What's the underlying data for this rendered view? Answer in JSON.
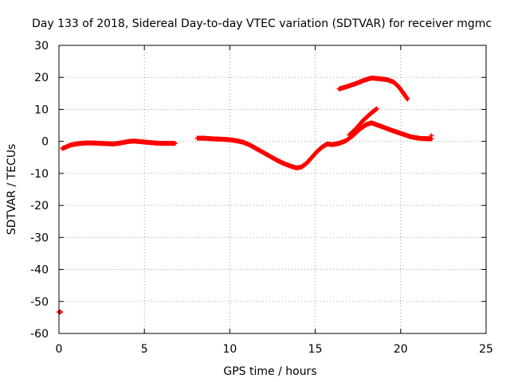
{
  "chart_data": {
    "type": "scatter",
    "title": "Day 133 of 2018, Sidereal Day-to-day VTEC variation (SDTVAR) for receiver mgmc",
    "xlabel": "GPS time / hours",
    "ylabel": "SDTVAR / TECUs",
    "xlim": [
      0,
      25
    ],
    "ylim": [
      -60,
      30
    ],
    "xticks": [
      0,
      5,
      10,
      15,
      20,
      25
    ],
    "yticks": [
      -60,
      -50,
      -40,
      -30,
      -20,
      -10,
      0,
      10,
      20,
      30
    ],
    "xtick_labels": [
      "0",
      "5",
      "10",
      "15",
      "20",
      "25"
    ],
    "ytick_labels": [
      "-60",
      "-50",
      "-40",
      "-30",
      "-20",
      "-10",
      "0",
      "10",
      "20",
      "30"
    ],
    "grid": true,
    "marker": "plus",
    "colors": {
      "series": "#ff0000",
      "axis": "#000000",
      "grid": "#a0a0a0"
    },
    "series": [
      {
        "name": "outlier",
        "points": [
          [
            0.0,
            -53.3
          ],
          [
            0.1,
            -53.3
          ]
        ]
      },
      {
        "name": "arc-1",
        "points": [
          [
            0.2,
            -2.2
          ],
          [
            0.4,
            -1.8
          ],
          [
            0.6,
            -1.3
          ],
          [
            0.8,
            -1.0
          ],
          [
            1.0,
            -0.8
          ],
          [
            1.3,
            -0.6
          ],
          [
            1.6,
            -0.5
          ],
          [
            2.0,
            -0.5
          ],
          [
            2.4,
            -0.6
          ],
          [
            2.8,
            -0.7
          ],
          [
            3.2,
            -0.8
          ],
          [
            3.5,
            -0.6
          ],
          [
            3.8,
            -0.3
          ],
          [
            4.1,
            0.0
          ],
          [
            4.4,
            0.1
          ],
          [
            4.8,
            -0.1
          ],
          [
            5.2,
            -0.3
          ],
          [
            5.6,
            -0.5
          ],
          [
            6.0,
            -0.6
          ],
          [
            6.4,
            -0.6
          ],
          [
            6.8,
            -0.6
          ]
        ]
      },
      {
        "name": "arc-2",
        "points": [
          [
            8.1,
            1.0
          ],
          [
            8.5,
            1.0
          ],
          [
            9.0,
            0.8
          ],
          [
            9.5,
            0.7
          ],
          [
            10.0,
            0.5
          ],
          [
            10.4,
            0.2
          ],
          [
            10.8,
            -0.3
          ],
          [
            11.2,
            -1.2
          ],
          [
            11.6,
            -2.4
          ],
          [
            12.0,
            -3.6
          ],
          [
            12.4,
            -4.8
          ],
          [
            12.8,
            -6.0
          ],
          [
            13.2,
            -7.0
          ],
          [
            13.6,
            -7.8
          ],
          [
            13.9,
            -8.3
          ],
          [
            14.2,
            -8.0
          ],
          [
            14.5,
            -6.8
          ],
          [
            14.8,
            -5.0
          ],
          [
            15.1,
            -3.2
          ],
          [
            15.4,
            -1.8
          ],
          [
            15.7,
            -0.8
          ],
          [
            16.0,
            -1.0
          ],
          [
            16.4,
            -0.6
          ],
          [
            16.8,
            0.2
          ],
          [
            17.2,
            1.8
          ],
          [
            17.6,
            3.8
          ],
          [
            18.0,
            5.3
          ],
          [
            18.3,
            5.8
          ],
          [
            18.8,
            4.8
          ],
          [
            19.4,
            3.6
          ],
          [
            20.0,
            2.5
          ],
          [
            20.6,
            1.4
          ],
          [
            21.2,
            0.9
          ],
          [
            21.8,
            0.8
          ]
        ]
      },
      {
        "name": "arc-3",
        "points": [
          [
            17.0,
            2.0
          ],
          [
            17.4,
            4.0
          ],
          [
            17.8,
            6.5
          ],
          [
            18.2,
            8.5
          ],
          [
            18.6,
            10.2
          ]
        ]
      },
      {
        "name": "arc-4",
        "points": [
          [
            16.4,
            16.4
          ],
          [
            16.9,
            17.2
          ],
          [
            17.4,
            18.1
          ],
          [
            17.9,
            19.2
          ],
          [
            18.3,
            19.8
          ],
          [
            18.7,
            19.6
          ],
          [
            19.2,
            19.3
          ],
          [
            19.6,
            18.5
          ],
          [
            19.9,
            17.0
          ],
          [
            20.2,
            14.8
          ],
          [
            20.4,
            13.2
          ]
        ]
      },
      {
        "name": "arc-5",
        "points": [
          [
            21.8,
            1.8
          ]
        ]
      }
    ]
  }
}
